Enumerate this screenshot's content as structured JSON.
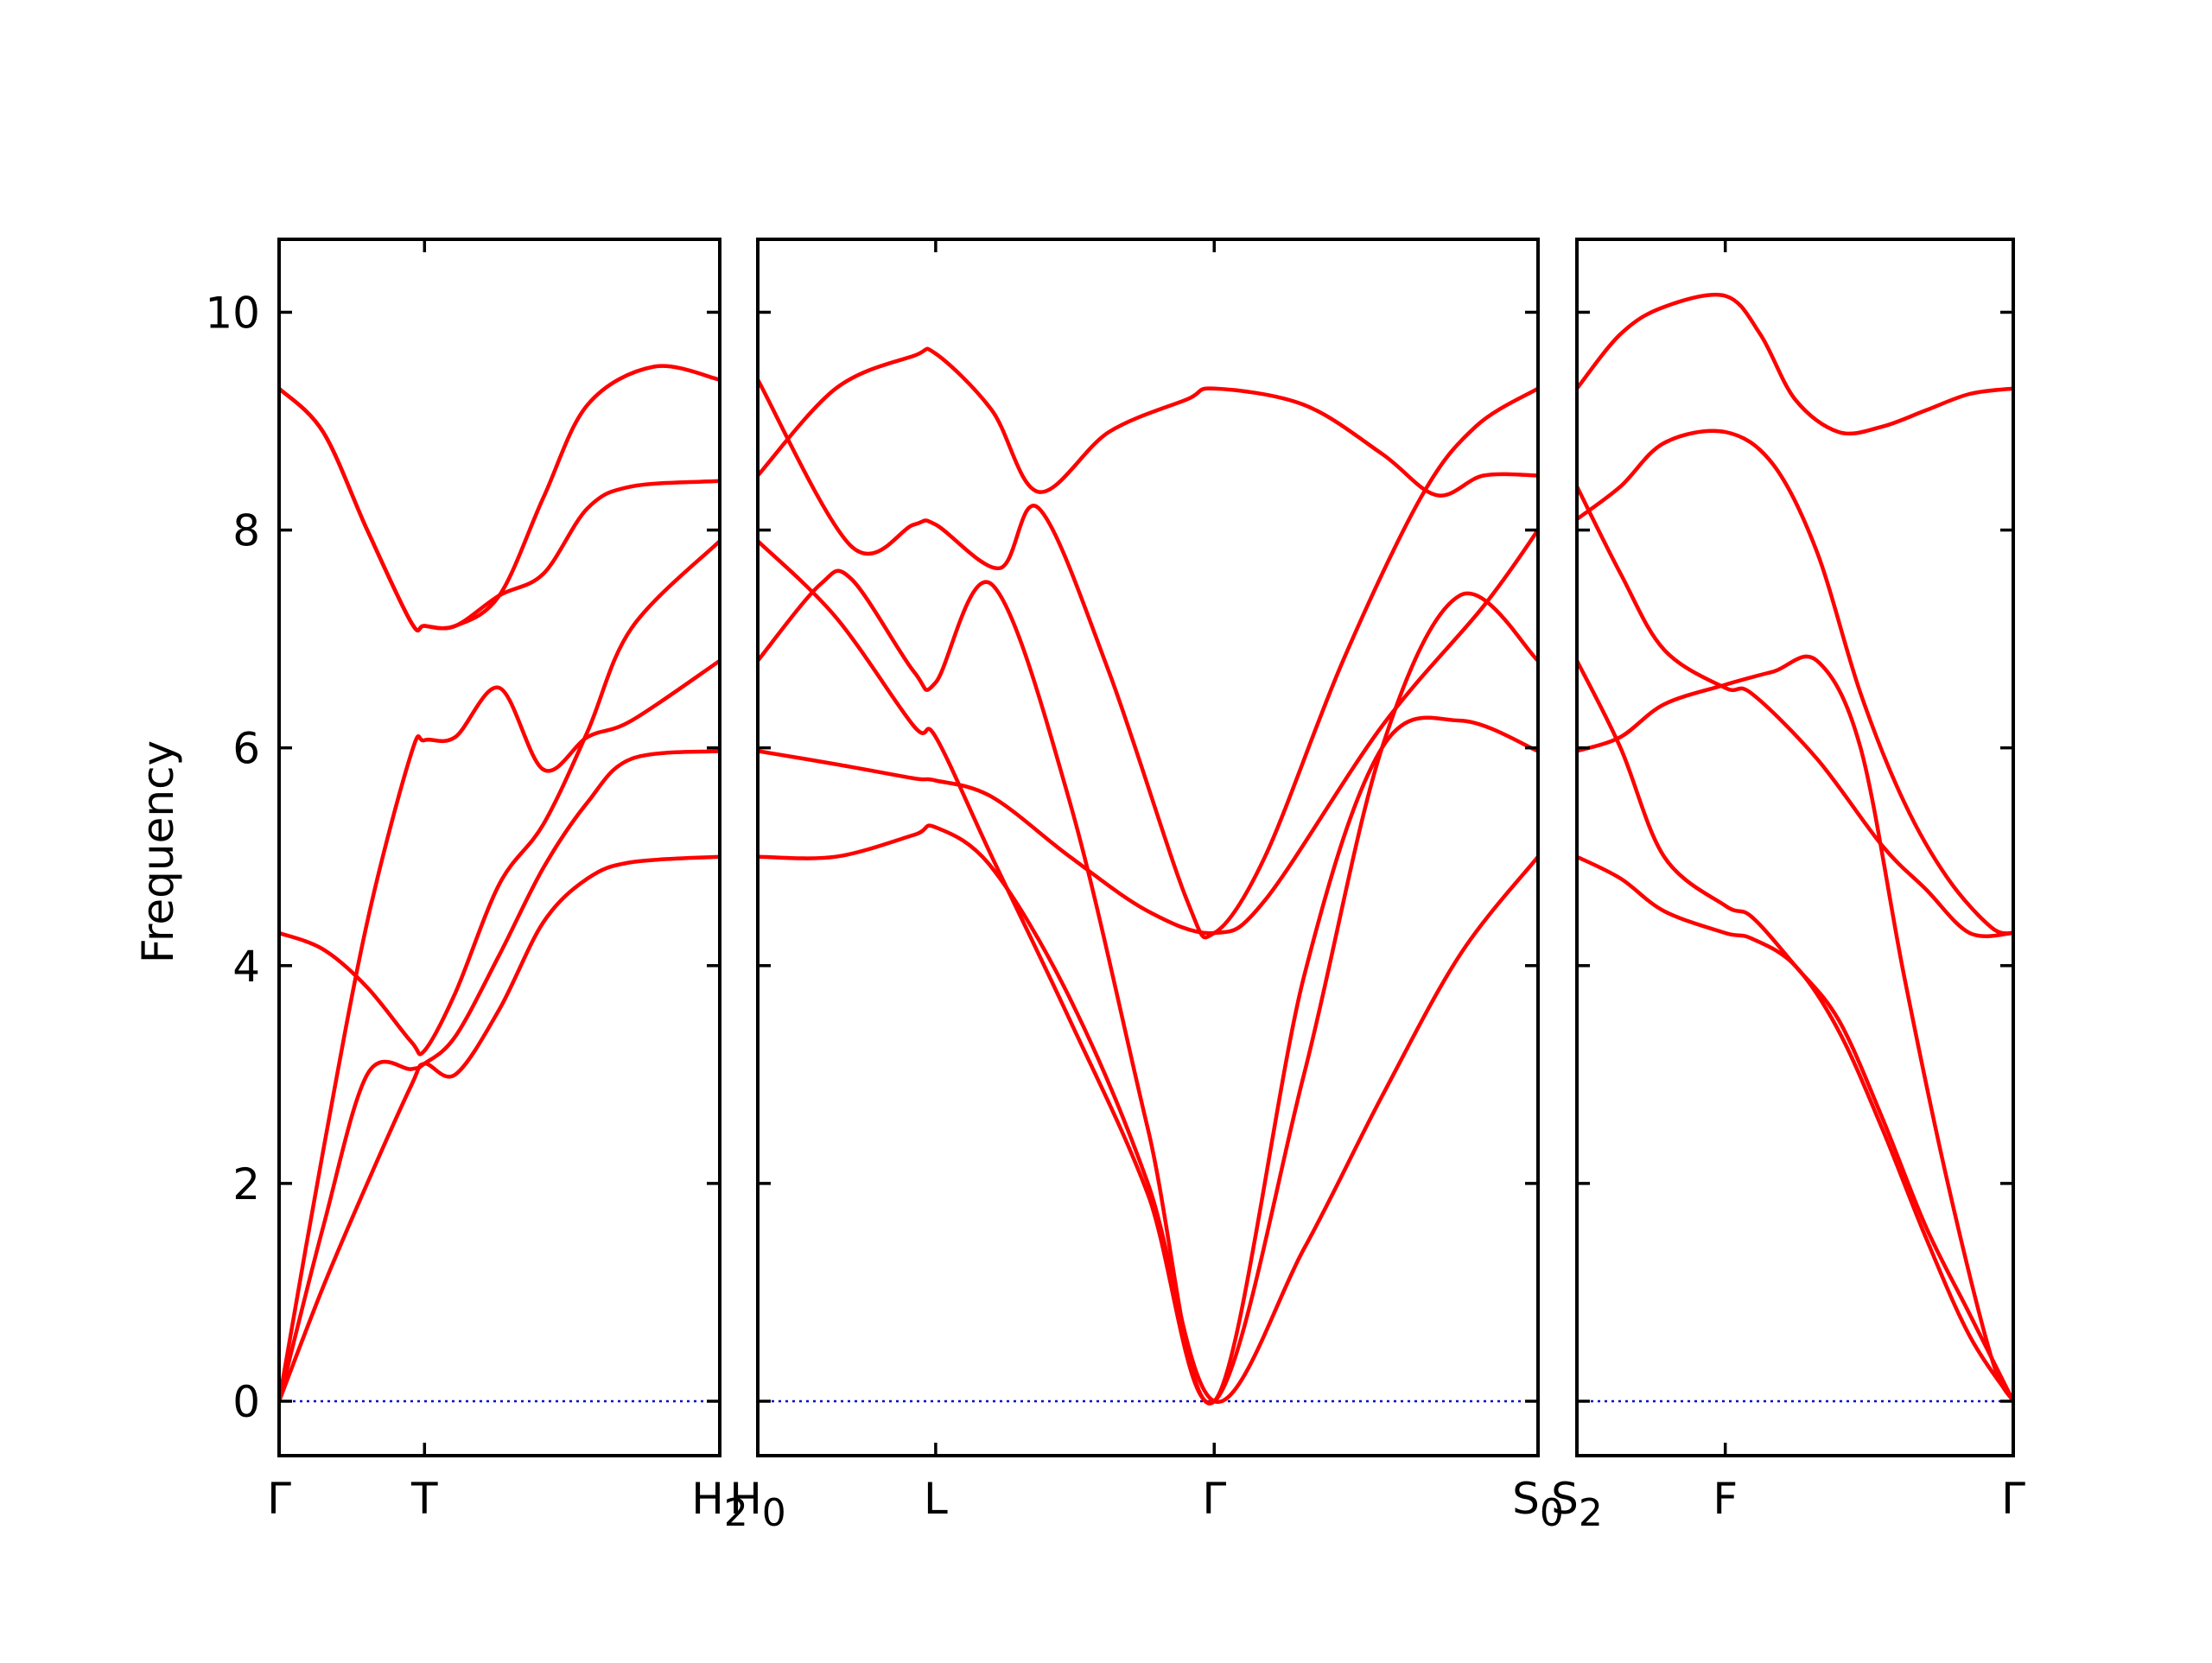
{
  "chart_data": {
    "type": "line",
    "ylabel": "Frequency",
    "ylim": [
      -0.5,
      10.67
    ],
    "yticks": [
      0,
      2,
      4,
      6,
      8,
      10
    ],
    "grid": false,
    "colors": {
      "bands": "#ff0000",
      "zero_line": "#0000cc",
      "axes": "#000000"
    },
    "panels": [
      {
        "xlim": [
          0,
          1
        ],
        "xticks": [
          {
            "x": 0.0,
            "label": "Γ"
          },
          {
            "x": 0.33,
            "label": "T"
          },
          {
            "x": 1.0,
            "label": "H",
            "sub": "2"
          }
        ],
        "series": [
          {
            "points": [
              [
                0,
                0
              ],
              [
                0.1,
                1.05
              ],
              [
                0.2,
                2.0
              ],
              [
                0.3,
                2.9
              ],
              [
                0.33,
                3.1
              ],
              [
                0.4,
                3.0
              ],
              [
                0.5,
                3.6
              ],
              [
                0.6,
                4.4
              ],
              [
                0.7,
                4.8
              ],
              [
                0.8,
                4.95
              ],
              [
                1.0,
                5.0
              ]
            ]
          },
          {
            "points": [
              [
                0,
                0
              ],
              [
                0.1,
                1.6
              ],
              [
                0.2,
                3.0
              ],
              [
                0.3,
                3.05
              ],
              [
                0.33,
                3.1
              ],
              [
                0.4,
                3.35
              ],
              [
                0.5,
                4.1
              ],
              [
                0.6,
                4.9
              ],
              [
                0.7,
                5.5
              ],
              [
                0.8,
                5.9
              ],
              [
                1.0,
                5.97
              ]
            ]
          },
          {
            "points": [
              [
                0,
                4.3
              ],
              [
                0.1,
                4.15
              ],
              [
                0.2,
                3.8
              ],
              [
                0.3,
                3.3
              ],
              [
                0.33,
                3.22
              ],
              [
                0.4,
                3.75
              ],
              [
                0.5,
                4.75
              ],
              [
                0.6,
                5.3
              ],
              [
                0.7,
                6.15
              ],
              [
                0.8,
                7.1
              ],
              [
                1.0,
                7.9
              ]
            ]
          },
          {
            "points": [
              [
                0,
                0
              ],
              [
                0.1,
                2.3
              ],
              [
                0.2,
                4.4
              ],
              [
                0.3,
                5.95
              ],
              [
                0.33,
                6.07
              ],
              [
                0.4,
                6.1
              ],
              [
                0.5,
                6.55
              ],
              [
                0.6,
                5.8
              ],
              [
                0.7,
                6.1
              ],
              [
                0.8,
                6.25
              ],
              [
                1.0,
                6.8
              ]
            ]
          },
          {
            "points": [
              [
                0,
                9.3
              ],
              [
                0.1,
                8.9
              ],
              [
                0.2,
                8.0
              ],
              [
                0.3,
                7.15
              ],
              [
                0.33,
                7.12
              ],
              [
                0.4,
                7.12
              ],
              [
                0.5,
                7.4
              ],
              [
                0.6,
                7.6
              ],
              [
                0.7,
                8.2
              ],
              [
                0.8,
                8.4
              ],
              [
                1.0,
                8.45
              ]
            ]
          },
          {
            "points": [
              [
                0,
                9.3
              ],
              [
                0.1,
                8.9
              ],
              [
                0.2,
                8.0
              ],
              [
                0.3,
                7.15
              ],
              [
                0.33,
                7.12
              ],
              [
                0.4,
                7.12
              ],
              [
                0.5,
                7.4
              ],
              [
                0.6,
                8.3
              ],
              [
                0.7,
                9.15
              ],
              [
                0.85,
                9.5
              ],
              [
                1.0,
                9.38
              ]
            ]
          }
        ]
      },
      {
        "xlim": [
          0,
          1
        ],
        "xticks": [
          {
            "x": 0.0,
            "label": "H",
            "sub": "0"
          },
          {
            "x": 0.228,
            "label": "L"
          },
          {
            "x": 0.585,
            "label": "Γ"
          },
          {
            "x": 1.0,
            "label": "S",
            "sub": "0"
          }
        ],
        "series": [
          {
            "points": [
              [
                0,
                5.0
              ],
              [
                0.1,
                5.0
              ],
              [
                0.2,
                5.2
              ],
              [
                0.228,
                5.27
              ],
              [
                0.3,
                4.9
              ],
              [
                0.4,
                3.7
              ],
              [
                0.5,
                2.0
              ],
              [
                0.585,
                0
              ],
              [
                0.7,
                1.4
              ],
              [
                0.8,
                2.8
              ],
              [
                0.9,
                4.1
              ],
              [
                1.0,
                5.0
              ]
            ]
          },
          {
            "points": [
              [
                0,
                5.97
              ],
              [
                0.1,
                5.85
              ],
              [
                0.2,
                5.72
              ],
              [
                0.228,
                5.7
              ],
              [
                0.3,
                5.55
              ],
              [
                0.4,
                5.0
              ],
              [
                0.5,
                4.5
              ],
              [
                0.585,
                4.3
              ],
              [
                0.65,
                4.6
              ],
              [
                0.8,
                6.2
              ],
              [
                0.93,
                7.3
              ],
              [
                1.0,
                8.0
              ]
            ]
          },
          {
            "points": [
              [
                0,
                6.8
              ],
              [
                0.08,
                7.5
              ],
              [
                0.12,
                7.55
              ],
              [
                0.2,
                6.7
              ],
              [
                0.228,
                6.6
              ],
              [
                0.3,
                7.5
              ],
              [
                0.4,
                5.5
              ],
              [
                0.5,
                2.5
              ],
              [
                0.585,
                0
              ],
              [
                0.7,
                3.9
              ],
              [
                0.8,
                6.0
              ],
              [
                0.9,
                6.25
              ],
              [
                1.0,
                5.97
              ]
            ]
          },
          {
            "points": [
              [
                0,
                7.9
              ],
              [
                0.1,
                7.2
              ],
              [
                0.2,
                6.2
              ],
              [
                0.228,
                6.1
              ],
              [
                0.3,
                5.0
              ],
              [
                0.4,
                3.5
              ],
              [
                0.5,
                1.9
              ],
              [
                0.585,
                0
              ],
              [
                0.7,
                3.0
              ],
              [
                0.8,
                6.0
              ],
              [
                0.9,
                7.4
              ],
              [
                1.0,
                6.8
              ]
            ]
          },
          {
            "points": [
              [
                0,
                9.38
              ],
              [
                0.12,
                7.85
              ],
              [
                0.2,
                8.05
              ],
              [
                0.228,
                8.05
              ],
              [
                0.31,
                7.65
              ],
              [
                0.36,
                8.2
              ],
              [
                0.45,
                6.7
              ],
              [
                0.55,
                4.6
              ],
              [
                0.585,
                4.3
              ],
              [
                0.65,
                5.0
              ],
              [
                0.75,
                6.8
              ],
              [
                0.85,
                8.3
              ],
              [
                0.92,
                8.95
              ],
              [
                1.0,
                9.3
              ]
            ]
          },
          {
            "points": [
              [
                0,
                8.5
              ],
              [
                0.1,
                9.3
              ],
              [
                0.2,
                9.6
              ],
              [
                0.228,
                9.62
              ],
              [
                0.3,
                9.1
              ],
              [
                0.36,
                8.35
              ],
              [
                0.45,
                8.9
              ],
              [
                0.55,
                9.2
              ],
              [
                0.585,
                9.3
              ],
              [
                0.7,
                9.15
              ],
              [
                0.8,
                8.7
              ],
              [
                0.87,
                8.32
              ],
              [
                0.93,
                8.5
              ],
              [
                1.0,
                8.5
              ]
            ]
          }
        ]
      },
      {
        "xlim": [
          0,
          1
        ],
        "xticks": [
          {
            "x": 0.0,
            "label": "S",
            "sub": "2"
          },
          {
            "x": 0.34,
            "label": "F"
          },
          {
            "x": 1.0,
            "label": "Γ"
          }
        ],
        "series": [
          {
            "points": [
              [
                0,
                5.0
              ],
              [
                0.1,
                4.8
              ],
              [
                0.2,
                4.5
              ],
              [
                0.34,
                4.3
              ],
              [
                0.4,
                4.25
              ],
              [
                0.5,
                4.0
              ],
              [
                0.6,
                3.4
              ],
              [
                0.7,
                2.5
              ],
              [
                0.8,
                1.5
              ],
              [
                0.9,
                0.6
              ],
              [
                1.0,
                0
              ]
            ]
          },
          {
            "points": [
              [
                0,
                6.8
              ],
              [
                0.1,
                6.0
              ],
              [
                0.2,
                5.0
              ],
              [
                0.34,
                4.55
              ],
              [
                0.4,
                4.45
              ],
              [
                0.5,
                4.0
              ],
              [
                0.6,
                3.5
              ],
              [
                0.7,
                2.6
              ],
              [
                0.8,
                1.6
              ],
              [
                0.9,
                0.8
              ],
              [
                1.0,
                0
              ]
            ]
          },
          {
            "points": [
              [
                0,
                8.4
              ],
              [
                0.1,
                7.6
              ],
              [
                0.2,
                6.9
              ],
              [
                0.34,
                6.55
              ],
              [
                0.4,
                6.5
              ],
              [
                0.55,
                5.9
              ],
              [
                0.7,
                5.1
              ],
              [
                0.8,
                4.7
              ],
              [
                0.9,
                4.3
              ],
              [
                1.0,
                4.3
              ]
            ]
          },
          {
            "points": [
              [
                0,
                5.97
              ],
              [
                0.1,
                6.1
              ],
              [
                0.2,
                6.4
              ],
              [
                0.34,
                6.58
              ],
              [
                0.45,
                6.7
              ],
              [
                0.55,
                6.8
              ],
              [
                0.65,
                6.0
              ],
              [
                0.75,
                3.9
              ],
              [
                0.85,
                2.0
              ],
              [
                0.95,
                0.4
              ],
              [
                1.0,
                0
              ]
            ]
          },
          {
            "points": [
              [
                0,
                8.1
              ],
              [
                0.1,
                8.4
              ],
              [
                0.2,
                8.8
              ],
              [
                0.34,
                8.9
              ],
              [
                0.45,
                8.6
              ],
              [
                0.55,
                7.8
              ],
              [
                0.65,
                6.5
              ],
              [
                0.75,
                5.5
              ],
              [
                0.85,
                4.8
              ],
              [
                0.95,
                4.35
              ],
              [
                1.0,
                4.3
              ]
            ]
          },
          {
            "points": [
              [
                0,
                9.3
              ],
              [
                0.1,
                9.8
              ],
              [
                0.2,
                10.05
              ],
              [
                0.34,
                10.15
              ],
              [
                0.42,
                9.8
              ],
              [
                0.5,
                9.2
              ],
              [
                0.6,
                8.9
              ],
              [
                0.7,
                8.95
              ],
              [
                0.8,
                9.1
              ],
              [
                0.9,
                9.25
              ],
              [
                1.0,
                9.3
              ]
            ]
          }
        ]
      }
    ]
  }
}
